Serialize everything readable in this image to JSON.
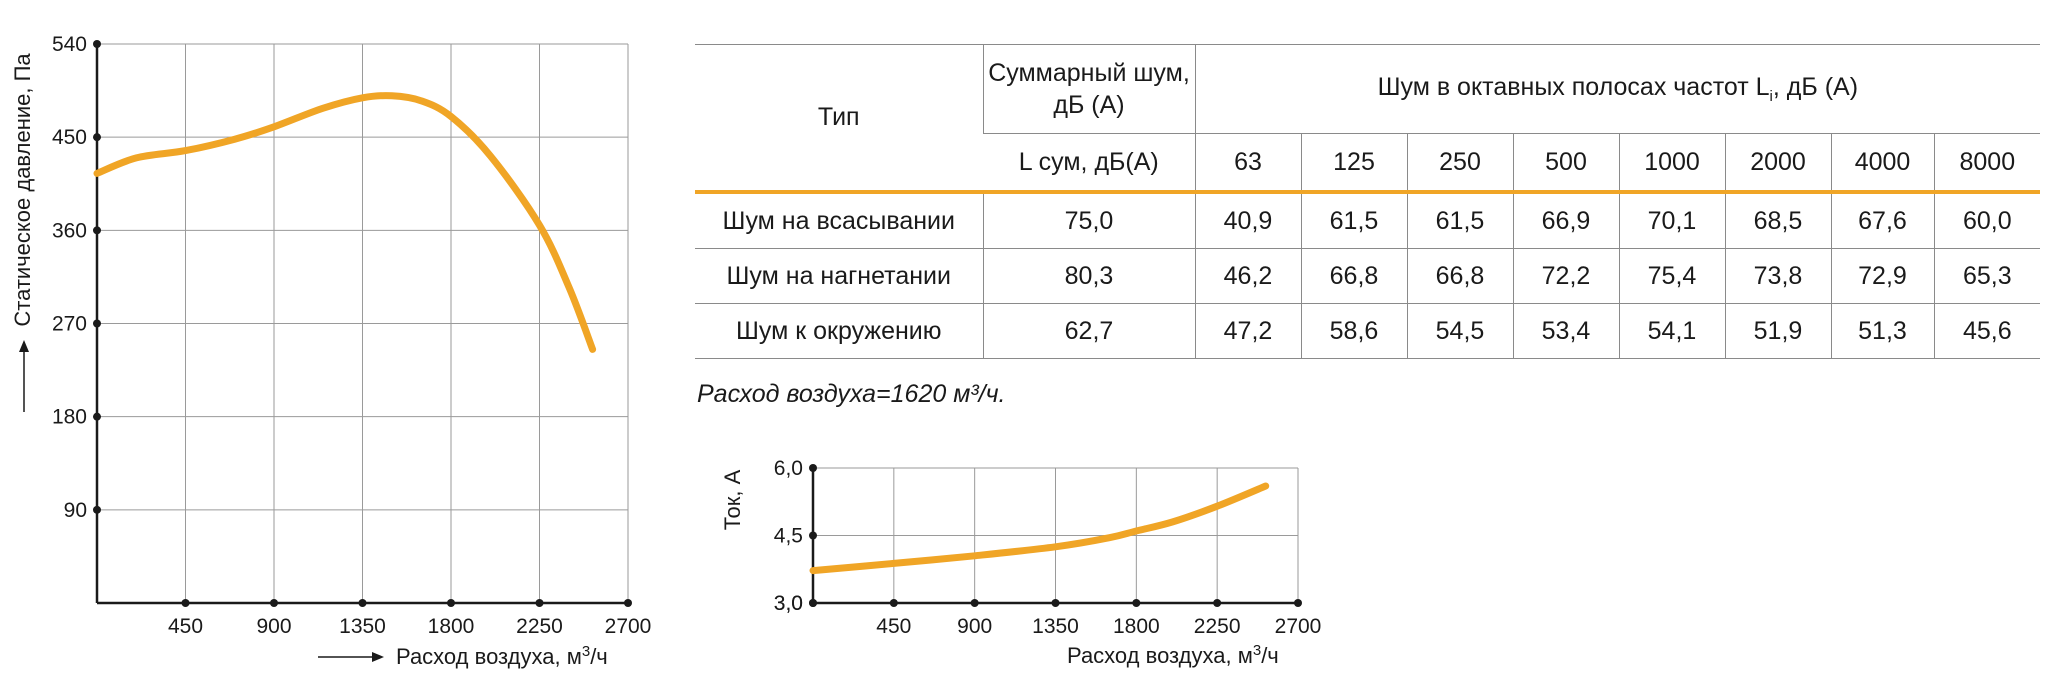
{
  "colors": {
    "curve": "#f0a526",
    "grid": "#9a9a9a",
    "axis": "#1a1a1a",
    "divider": "#f0a526"
  },
  "chart_data": [
    {
      "type": "line",
      "ylabel": "Статическое давление, Па",
      "xlabel": "Расход воздуха, м³/ч",
      "xlim": [
        0,
        2700
      ],
      "ylim": [
        0,
        540
      ],
      "x_ticks": [
        "450",
        "900",
        "1350",
        "1800",
        "2250",
        "2700"
      ],
      "y_ticks": [
        "90",
        "180",
        "270",
        "360",
        "450",
        "540"
      ],
      "grid": true,
      "series": [
        {
          "x": [
            0,
            200,
            450,
            700,
            900,
            1150,
            1350,
            1500,
            1650,
            1800,
            2000,
            2250,
            2400,
            2520
          ],
          "y": [
            415,
            430,
            437,
            448,
            460,
            478,
            488,
            490,
            485,
            470,
            432,
            365,
            305,
            245
          ]
        }
      ]
    },
    {
      "type": "line",
      "ylabel": "Ток, А",
      "xlabel": "Расход воздуха, м³/ч",
      "xlim": [
        0,
        2700
      ],
      "ylim": [
        3.0,
        6.0
      ],
      "x_ticks": [
        "450",
        "900",
        "1350",
        "1800",
        "2250",
        "2700"
      ],
      "y_ticks": [
        "3,0",
        "4,5",
        "6,0"
      ],
      "grid": true,
      "series": [
        {
          "x": [
            0,
            450,
            900,
            1350,
            1650,
            1800,
            2000,
            2250,
            2520
          ],
          "y": [
            3.72,
            3.88,
            4.05,
            4.25,
            4.45,
            4.6,
            4.8,
            5.15,
            5.6
          ]
        }
      ]
    },
    {
      "type": "table",
      "headers": {
        "type": "Тип",
        "total": "Суммарный шум, дБ (А)",
        "octave_prefix": "Шум в октавных полосах частот L",
        "octave_sub": "i",
        "octave_suffix": ", дБ (А)",
        "total_sub": "L сум, дБ(А)",
        "bands": [
          "63",
          "125",
          "250",
          "500",
          "1000",
          "2000",
          "4000",
          "8000"
        ]
      },
      "rows": [
        {
          "label": "Шум на всасывании",
          "total": "75,0",
          "bands": [
            "40,9",
            "61,5",
            "61,5",
            "66,9",
            "70,1",
            "68,5",
            "67,6",
            "60,0"
          ]
        },
        {
          "label": "Шум на нагнетании",
          "total": "80,3",
          "bands": [
            "46,2",
            "66,8",
            "66,8",
            "72,2",
            "75,4",
            "73,8",
            "72,9",
            "65,3"
          ]
        },
        {
          "label": "Шум к окружению",
          "total": "62,7",
          "bands": [
            "47,2",
            "58,6",
            "54,5",
            "53,4",
            "54,1",
            "51,9",
            "51,3",
            "45,6"
          ]
        }
      ]
    }
  ],
  "note": "Расход воздуха=1620 м³/ч."
}
